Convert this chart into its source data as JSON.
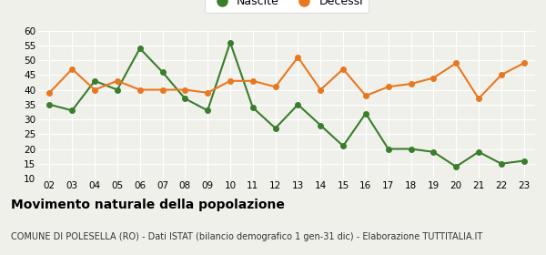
{
  "years": [
    "02",
    "03",
    "04",
    "05",
    "06",
    "07",
    "08",
    "09",
    "10",
    "11",
    "12",
    "13",
    "14",
    "15",
    "16",
    "17",
    "18",
    "19",
    "20",
    "21",
    "22",
    "23"
  ],
  "nascite": [
    35,
    33,
    43,
    40,
    54,
    46,
    37,
    33,
    56,
    34,
    27,
    35,
    28,
    21,
    32,
    20,
    20,
    19,
    14,
    19,
    15,
    16
  ],
  "decessi": [
    39,
    47,
    40,
    43,
    40,
    40,
    40,
    39,
    43,
    43,
    41,
    51,
    40,
    47,
    38,
    41,
    42,
    44,
    49,
    37,
    45,
    49
  ],
  "nascite_color": "#3a7d2c",
  "decessi_color": "#e87820",
  "bg_color": "#f0f0eb",
  "grid_color": "#ffffff",
  "title": "Movimento naturale della popolazione",
  "subtitle": "COMUNE DI POLESELLA (RO) - Dati ISTAT (bilancio demografico 1 gen-31 dic) - Elaborazione TUTTITALIA.IT",
  "legend_nascite": "Nascite",
  "legend_decessi": "Decessi",
  "ylim": [
    10,
    60
  ],
  "yticks": [
    10,
    15,
    20,
    25,
    30,
    35,
    40,
    45,
    50,
    55,
    60
  ],
  "title_fontsize": 10,
  "subtitle_fontsize": 7,
  "marker_size": 4,
  "linewidth": 1.5
}
